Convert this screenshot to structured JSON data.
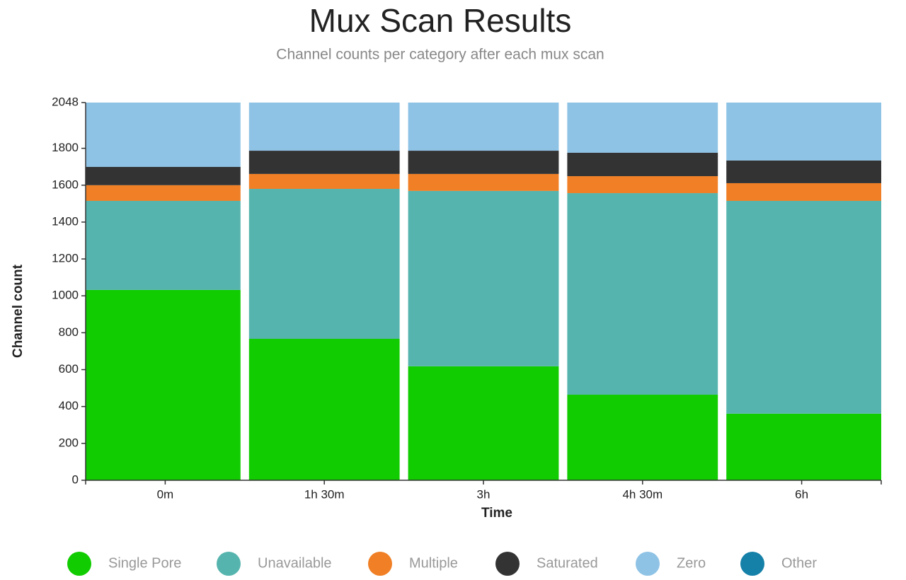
{
  "chart_data": {
    "type": "stacked_bar",
    "title": "Mux Scan Results",
    "subtitle": "Channel counts per category after each mux scan",
    "x_label": "Time",
    "y_label": "Channel count",
    "categories": [
      "0m",
      "1h 30m",
      "3h",
      "4h 30m",
      "6h"
    ],
    "series": [
      {
        "name": "Single Pore",
        "color": "#11cc00",
        "values": [
          1032,
          767,
          618,
          464,
          361
        ]
      },
      {
        "name": "Unavailable",
        "color": "#56b4ae",
        "values": [
          483,
          813,
          951,
          1093,
          1154
        ]
      },
      {
        "name": "Multiple",
        "color": "#f07f25",
        "values": [
          85,
          81,
          92,
          92,
          96
        ]
      },
      {
        "name": "Saturated",
        "color": "#333333",
        "values": [
          99,
          126,
          126,
          127,
          123
        ]
      },
      {
        "name": "Zero",
        "color": "#8fc3e6",
        "values": [
          349,
          261,
          261,
          272,
          314
        ]
      },
      {
        "name": "Other",
        "color": "#1580a8",
        "values": [
          0,
          0,
          0,
          0,
          0
        ]
      }
    ],
    "ylim": [
      0,
      2048
    ],
    "yticks": [
      0,
      200,
      400,
      600,
      800,
      1000,
      1200,
      1400,
      1600,
      1800,
      2048
    ],
    "grid": false,
    "legend": "bottom"
  }
}
